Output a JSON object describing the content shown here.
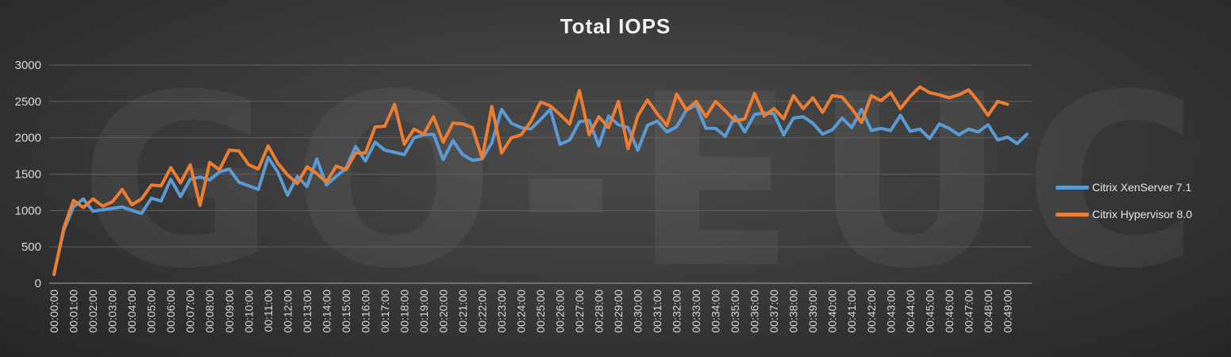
{
  "watermark": "GO-EUC",
  "chart_data": {
    "type": "line",
    "title": "Total IOPS",
    "xlabel": "",
    "ylabel": "",
    "ylim": [
      0,
      3000
    ],
    "yticks": [
      0,
      500,
      1000,
      1500,
      2000,
      2500,
      3000
    ],
    "grid": true,
    "legend_position": "right",
    "x_tick_labels": [
      "00:00:00",
      "00:01:00",
      "00:02:00",
      "00:03:00",
      "00:04:00",
      "00:05:00",
      "00:06:00",
      "00:07:00",
      "00:08:00",
      "00:09:00",
      "00:10:00",
      "00:11:00",
      "00:12:00",
      "00:13:00",
      "00:14:00",
      "00:15:00",
      "00:16:00",
      "00:17:00",
      "00:18:00",
      "00:19:00",
      "00:20:00",
      "00:21:00",
      "00:22:00",
      "00:23:00",
      "00:24:00",
      "00:25:00",
      "00:26:00",
      "00:27:00",
      "00:28:00",
      "00:29:00",
      "00:30:00",
      "00:31:00",
      "00:32:00",
      "00:33:00",
      "00:34:00",
      "00:35:00",
      "00:36:00",
      "00:37:00",
      "00:38:00",
      "00:39:00",
      "00:40:00",
      "00:41:00",
      "00:42:00",
      "00:43:00",
      "00:44:00",
      "00:45:00",
      "00:46:00",
      "00:47:00",
      "00:48:00",
      "00:49:00"
    ],
    "x_step_seconds": 30,
    "series": [
      {
        "name": "Citrix XenServer 7.1",
        "color": "#5b9bd5",
        "values": [
          130,
          730,
          1050,
          1160,
          990,
          1010,
          1030,
          1050,
          1000,
          960,
          1170,
          1130,
          1430,
          1190,
          1430,
          1460,
          1420,
          1530,
          1570,
          1390,
          1340,
          1290,
          1730,
          1530,
          1210,
          1470,
          1330,
          1710,
          1350,
          1470,
          1580,
          1880,
          1680,
          1940,
          1830,
          1800,
          1770,
          2000,
          2040,
          2050,
          1700,
          1960,
          1770,
          1690,
          1710,
          1930,
          2390,
          2200,
          2140,
          2120,
          2250,
          2390,
          1910,
          1970,
          2220,
          2240,
          1890,
          2300,
          2180,
          2140,
          1830,
          2170,
          2230,
          2080,
          2150,
          2380,
          2450,
          2130,
          2130,
          2020,
          2300,
          2080,
          2320,
          2340,
          2330,
          2040,
          2270,
          2290,
          2200,
          2050,
          2110,
          2270,
          2140,
          2390,
          2100,
          2130,
          2100,
          2310,
          2090,
          2120,
          1990,
          2190,
          2130,
          2040,
          2120,
          2080,
          2180,
          1970,
          2010,
          1920,
          2050
        ]
      },
      {
        "name": "Citrix Hypervisor 8.0",
        "color": "#ed7d31",
        "values": [
          120,
          760,
          1140,
          1040,
          1160,
          1060,
          1120,
          1290,
          1080,
          1160,
          1350,
          1340,
          1590,
          1380,
          1630,
          1070,
          1660,
          1560,
          1830,
          1820,
          1630,
          1570,
          1890,
          1650,
          1490,
          1370,
          1600,
          1510,
          1390,
          1610,
          1560,
          1790,
          1790,
          2150,
          2160,
          2460,
          1910,
          2120,
          2050,
          2290,
          1940,
          2200,
          2190,
          2140,
          1720,
          2430,
          1790,
          2000,
          2040,
          2220,
          2490,
          2440,
          2320,
          2190,
          2650,
          2040,
          2290,
          2140,
          2500,
          1850,
          2300,
          2520,
          2330,
          2170,
          2600,
          2380,
          2500,
          2290,
          2500,
          2370,
          2230,
          2260,
          2610,
          2300,
          2400,
          2260,
          2580,
          2400,
          2550,
          2350,
          2580,
          2560,
          2400,
          2210,
          2580,
          2510,
          2620,
          2400,
          2570,
          2700,
          2620,
          2590,
          2550,
          2590,
          2660,
          2500,
          2310,
          2500,
          2460
        ]
      }
    ]
  }
}
